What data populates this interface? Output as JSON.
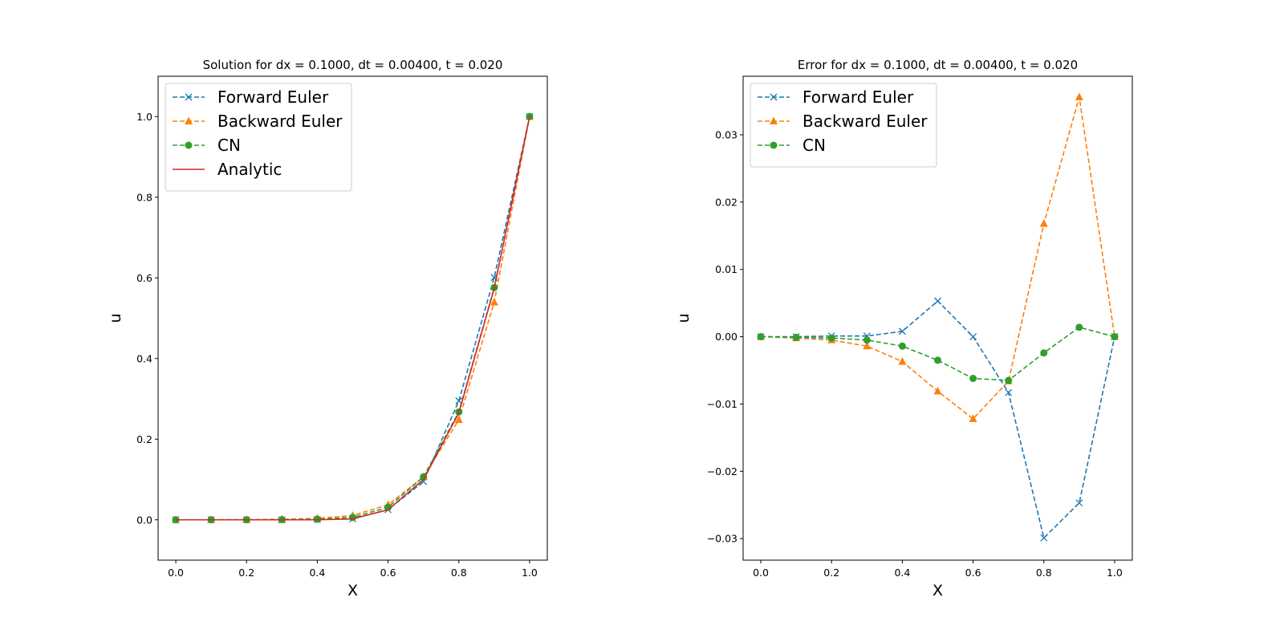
{
  "chart_data": [
    {
      "type": "line",
      "title": "Solution for dx = 0.1000, dt = 0.00400, t = 0.020",
      "xlabel": "X",
      "ylabel": "u",
      "xlim": [
        -0.05,
        1.05
      ],
      "ylim": [
        -0.1,
        1.1
      ],
      "xticks": [
        "0.0",
        "0.2",
        "0.4",
        "0.6",
        "0.8",
        "1.0"
      ],
      "yticks": [
        "0.0",
        "0.2",
        "0.4",
        "0.6",
        "0.8",
        "1.0"
      ],
      "grid": false,
      "legend_position": "top-left",
      "x": [
        0.0,
        0.1,
        0.2,
        0.3,
        0.4,
        0.5,
        0.6,
        0.7,
        0.8,
        0.9,
        1.0
      ],
      "series": [
        {
          "name": "Forward Euler",
          "style": "dashed",
          "marker": "x",
          "color": "#1f77b4",
          "values": [
            0.0,
            0.0,
            0.0,
            0.0,
            0.0007,
            0.0024,
            0.0253,
            0.0947,
            0.295,
            0.601,
            1.0
          ]
        },
        {
          "name": "Backward Euler",
          "style": "dashed",
          "marker": "triangle",
          "color": "#ff7f0e",
          "values": [
            0.0,
            0.0003,
            0.0005,
            0.0015,
            0.0037,
            0.0105,
            0.0374,
            0.1064,
            0.248,
            0.5395,
            1.0
          ]
        },
        {
          "name": "CN",
          "style": "dashed",
          "marker": "circle",
          "color": "#2ca02c",
          "values": [
            0.0,
            0.0,
            0.0001,
            0.0004,
            0.0014,
            0.0059,
            0.0312,
            0.1065,
            0.2675,
            0.5759,
            1.0
          ]
        },
        {
          "name": "Analytic",
          "style": "solid",
          "marker": "none",
          "color": "#d62728",
          "values": [
            0.0,
            0.0,
            0.0,
            0.0,
            0.0,
            0.0024,
            0.025,
            0.1,
            0.265,
            0.574,
            1.0
          ]
        }
      ]
    },
    {
      "type": "line",
      "title": "Error for dx = 0.1000, dt = 0.00400, t = 0.020",
      "xlabel": "X",
      "ylabel": "u",
      "xlim": [
        -0.05,
        1.05
      ],
      "ylim": [
        -0.0332,
        0.0387
      ],
      "xticks": [
        "0.0",
        "0.2",
        "0.4",
        "0.6",
        "0.8",
        "1.0"
      ],
      "yticks": [
        "−0.03",
        "−0.02",
        "−0.01",
        "0.00",
        "0.01",
        "0.02",
        "0.03"
      ],
      "grid": false,
      "legend_position": "top-left",
      "x": [
        0.0,
        0.1,
        0.2,
        0.3,
        0.4,
        0.5,
        0.6,
        0.7,
        0.8,
        0.9,
        1.0
      ],
      "series": [
        {
          "name": "Forward Euler",
          "style": "dashed",
          "marker": "x",
          "color": "#1f77b4",
          "values": [
            0.0,
            0.0,
            0.0001,
            0.0001,
            0.0008,
            0.0053,
            0.0,
            -0.0083,
            -0.0299,
            -0.0247,
            0.0
          ]
        },
        {
          "name": "Backward Euler",
          "style": "dashed",
          "marker": "triangle",
          "color": "#ff7f0e",
          "values": [
            0.0,
            -0.0002,
            -0.0005,
            -0.0014,
            -0.0037,
            -0.0081,
            -0.0122,
            -0.0066,
            0.0168,
            0.0356,
            0.0
          ]
        },
        {
          "name": "CN",
          "style": "dashed",
          "marker": "circle",
          "color": "#2ca02c",
          "values": [
            0.0,
            -0.0001,
            -0.0002,
            -0.0005,
            -0.0014,
            -0.0035,
            -0.0062,
            -0.0065,
            -0.0024,
            0.0014,
            0.0
          ]
        }
      ]
    }
  ]
}
